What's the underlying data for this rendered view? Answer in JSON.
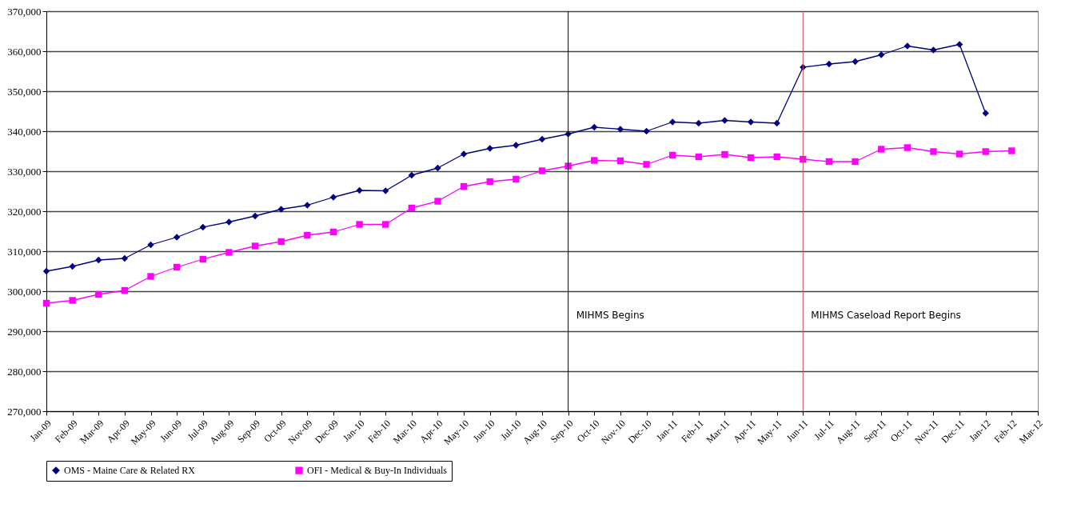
{
  "chart_data": {
    "type": "line",
    "categories": [
      "Jan-09",
      "Feb-09",
      "Mar-09",
      "Apr-09",
      "May-09",
      "Jun-09",
      "Jul-09",
      "Aug-09",
      "Sep-09",
      "Oct-09",
      "Nov-09",
      "Dec-09",
      "Jan-10",
      "Feb-10",
      "Mar-10",
      "Apr-10",
      "May-10",
      "Jun-10",
      "Jul-10",
      "Aug-10",
      "Sep-10",
      "Oct-10",
      "Nov-10",
      "Dec-10",
      "Jan-11",
      "Feb-11",
      "Mar-11",
      "Apr-11",
      "May-11",
      "Jun-11",
      "Jul-11",
      "Aug-11",
      "Sep-11",
      "Oct-11",
      "Nov-11",
      "Dec-11",
      "Jan-12",
      "Feb-12",
      "Mar-12"
    ],
    "series": [
      {
        "name": "OMS  - Maine Care & Related RX",
        "color": "#000080",
        "marker": "diamond",
        "values": [
          305000,
          306200,
          307800,
          308200,
          311600,
          313500,
          316000,
          317300,
          318800,
          320500,
          321500,
          323500,
          325200,
          325100,
          329000,
          330800,
          334300,
          335700,
          336500,
          338000,
          339300,
          341000,
          340500,
          340000,
          342300,
          342000,
          342700,
          342300,
          342000,
          356000,
          356800,
          357400,
          359100,
          361300,
          360300,
          361700,
          344500,
          null,
          null
        ]
      },
      {
        "name": "OFI - Medical & Buy-In Individuals",
        "color": "#ff00ff",
        "marker": "square",
        "values": [
          297000,
          297700,
          299200,
          300200,
          303700,
          306000,
          308000,
          309700,
          311300,
          312400,
          314000,
          314800,
          316700,
          316700,
          320800,
          322500,
          326200,
          327400,
          328000,
          330100,
          331300,
          332700,
          332600,
          331700,
          334000,
          333600,
          334200,
          333400,
          333600,
          333000,
          332400,
          332400,
          335500,
          335900,
          334900,
          334300,
          334900,
          335100,
          null
        ]
      }
    ],
    "ylim": [
      270000,
      370000
    ],
    "yticks": [
      {
        "value": 270000,
        "label": "270,000"
      },
      {
        "value": 280000,
        "label": "280,000"
      },
      {
        "value": 290000,
        "label": "290,000"
      },
      {
        "value": 300000,
        "label": "300,000"
      },
      {
        "value": 310000,
        "label": "310,000"
      },
      {
        "value": 320000,
        "label": "320,000"
      },
      {
        "value": 330000,
        "label": "330,000"
      },
      {
        "value": 340000,
        "label": "340,000"
      },
      {
        "value": 350000,
        "label": "350,000"
      },
      {
        "value": 360000,
        "label": "360,000"
      },
      {
        "value": 370000,
        "label": "370,000"
      }
    ],
    "grid": "y",
    "legend": "bottom",
    "ref_lines": [
      {
        "axis": "x",
        "value": "Sep-10",
        "label": "MIHMS Begins",
        "color": "#000000"
      },
      {
        "axis": "x",
        "value": "Jun-11",
        "label": "MIHMS Caseload Report Begins",
        "color": "#c0504d"
      }
    ]
  }
}
